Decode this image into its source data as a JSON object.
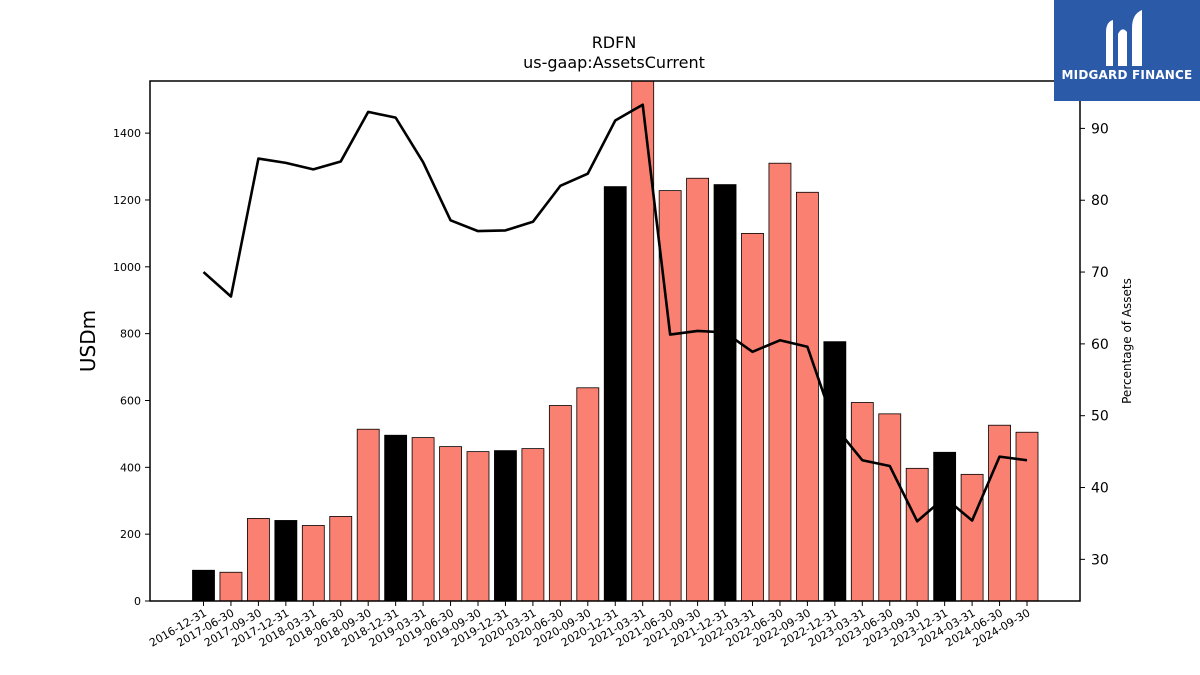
{
  "title": "RDFN",
  "subtitle": "us-gaap:AssetsCurrent",
  "logo": {
    "text": "MIDGARD FINANCE",
    "icon": "midgard-m-logo-icon"
  },
  "chart_data": {
    "type": "bar",
    "categories": [
      "2016-12-31",
      "2017-06-30",
      "2017-09-30",
      "2017-12-31",
      "2018-03-31",
      "2018-06-30",
      "2018-09-30",
      "2018-12-31",
      "2019-03-31",
      "2019-06-30",
      "2019-09-30",
      "2019-12-31",
      "2020-03-31",
      "2020-06-30",
      "2020-09-30",
      "2020-12-31",
      "2021-03-31",
      "2021-06-30",
      "2021-09-30",
      "2021-12-31",
      "2022-03-31",
      "2022-06-30",
      "2022-09-30",
      "2022-12-31",
      "2023-03-31",
      "2023-06-30",
      "2023-09-30",
      "2023-12-31",
      "2024-03-31",
      "2024-06-30",
      "2024-09-30"
    ],
    "series": [
      {
        "axis": "left",
        "type": "bar",
        "values": [
          92,
          86,
          247,
          241,
          226,
          253,
          514,
          496,
          489,
          462,
          447,
          450,
          456,
          585,
          638,
          1240,
          1560,
          1228,
          1265,
          1246,
          1100,
          1310,
          1223,
          776,
          594,
          560,
          397,
          445,
          379,
          526,
          505
        ],
        "colors": [
          "#000000",
          "#fa8072",
          "#fa8072",
          "#000000",
          "#fa8072",
          "#fa8072",
          "#fa8072",
          "#000000",
          "#fa8072",
          "#fa8072",
          "#fa8072",
          "#000000",
          "#fa8072",
          "#fa8072",
          "#fa8072",
          "#000000",
          "#fa8072",
          "#fa8072",
          "#fa8072",
          "#000000",
          "#fa8072",
          "#fa8072",
          "#fa8072",
          "#000000",
          "#fa8072",
          "#fa8072",
          "#fa8072",
          "#000000",
          "#fa8072",
          "#fa8072",
          "#fa8072"
        ]
      },
      {
        "axis": "right",
        "type": "line",
        "color": "#000000",
        "values": [
          70.0,
          66.6,
          85.8,
          85.2,
          84.3,
          85.4,
          92.3,
          91.5,
          85.3,
          77.2,
          75.7,
          75.8,
          77.0,
          82.0,
          83.7,
          91.1,
          93.3,
          61.3,
          61.8,
          61.6,
          58.9,
          60.5,
          59.6,
          48.5,
          43.8,
          43.0,
          35.3,
          38.6,
          35.4,
          44.3,
          43.8
        ]
      }
    ],
    "ylabel": "USDm",
    "y2label": "Percentage of Assets",
    "ylim": [
      0,
      1556
    ],
    "y2lim": [
      24.2,
      96.6
    ],
    "yticks": [
      0,
      200,
      400,
      600,
      800,
      1000,
      1200,
      1400
    ],
    "y2ticks": [
      30,
      40,
      50,
      60,
      70,
      80,
      90
    ],
    "bar_color_regular": "#fa8072",
    "bar_color_year_end": "#000000",
    "grid": false,
    "legend": "none"
  }
}
